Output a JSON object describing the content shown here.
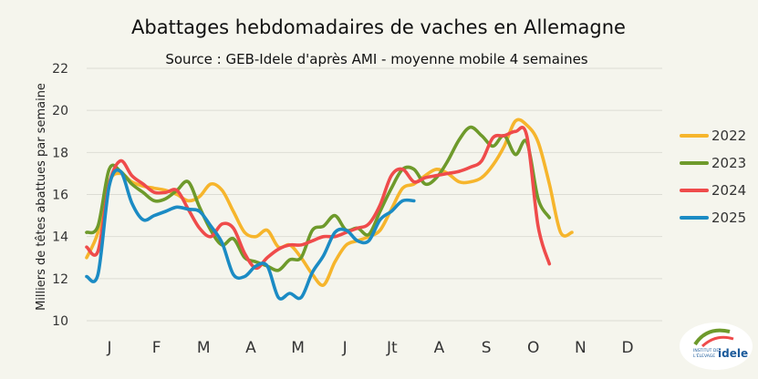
{
  "chart_data": {
    "type": "line",
    "title": "Abattages hebdomadaires de vaches en Allemagne",
    "subtitle": "Source : GEB-Idele d'après AMI - moyenne mobile 4 semaines",
    "ylabel": "Milliers de têtes abattues par semaine",
    "xlabel": "",
    "ylim": [
      10,
      22
    ],
    "yticks": [
      10,
      12,
      14,
      16,
      18,
      20,
      22
    ],
    "grid": true,
    "legend_position": "right",
    "x_tick_labels": [
      "J",
      "F",
      "M",
      "A",
      "M",
      "J",
      "Jt",
      "A",
      "S",
      "O",
      "N",
      "D"
    ],
    "x_unit": "week",
    "xlim": [
      1,
      52
    ],
    "series": [
      {
        "name": "2022",
        "color": "#f6b52c",
        "x": [
          1,
          2,
          3,
          4,
          5,
          6,
          7,
          8,
          9,
          10,
          11,
          12,
          13,
          14,
          15,
          16,
          17,
          18,
          19,
          20,
          21,
          22,
          23,
          24,
          25,
          26,
          27,
          28,
          29,
          30,
          31,
          32,
          33,
          34,
          35,
          36,
          37,
          38,
          39,
          40,
          41,
          42,
          43,
          44,
          45,
          46,
          47,
          48,
          49,
          50,
          51,
          52
        ],
        "values": [
          13.0,
          14.2,
          16.6,
          17.0,
          16.6,
          16.4,
          16.3,
          16.2,
          16.0,
          15.7,
          15.9,
          16.5,
          16.2,
          15.2,
          14.2,
          14.0,
          14.3,
          13.5,
          13.6,
          13.0,
          12.2,
          11.7,
          12.8,
          13.6,
          13.8,
          14.0,
          14.3,
          15.3,
          16.3,
          16.5,
          16.9,
          17.2,
          17.0,
          16.6,
          16.6,
          16.8,
          17.4,
          18.3,
          19.5,
          19.3,
          18.5,
          16.5,
          14.2,
          14.2,
          null,
          null,
          null,
          null,
          null,
          null,
          null,
          null
        ]
      },
      {
        "name": "2023",
        "color": "#6e9a2b",
        "x": [
          1,
          2,
          3,
          4,
          5,
          6,
          7,
          8,
          9,
          10,
          11,
          12,
          13,
          14,
          15,
          16,
          17,
          18,
          19,
          20,
          21,
          22,
          23,
          24,
          25,
          26,
          27,
          28,
          29,
          30,
          31,
          32,
          33,
          34,
          35,
          36,
          37,
          38,
          39,
          40,
          41,
          42,
          43,
          44,
          45,
          46,
          47,
          48,
          49,
          50,
          51,
          52
        ],
        "values": [
          14.2,
          14.5,
          17.2,
          17.1,
          16.5,
          16.1,
          15.7,
          15.8,
          16.2,
          16.6,
          15.4,
          14.3,
          13.6,
          13.9,
          13.0,
          12.8,
          12.6,
          12.4,
          12.9,
          13.0,
          14.3,
          14.5,
          15.0,
          14.3,
          14.4,
          14.1,
          15.2,
          16.3,
          17.2,
          17.2,
          16.5,
          16.8,
          17.6,
          18.6,
          19.2,
          18.8,
          18.3,
          18.8,
          17.9,
          18.5,
          15.8,
          14.9,
          null,
          null,
          null,
          null,
          null,
          null,
          null,
          null,
          null,
          null
        ]
      },
      {
        "name": "2024",
        "color": "#ef4b4b",
        "x": [
          1,
          2,
          3,
          4,
          5,
          6,
          7,
          8,
          9,
          10,
          11,
          12,
          13,
          14,
          15,
          16,
          17,
          18,
          19,
          20,
          21,
          22,
          23,
          24,
          25,
          26,
          27,
          28,
          29,
          30,
          31,
          32,
          33,
          34,
          35,
          36,
          37,
          38,
          39,
          40,
          41,
          42,
          43,
          44,
          45,
          46,
          47,
          48,
          49,
          50,
          51,
          52
        ],
        "values": [
          13.5,
          13.3,
          16.5,
          17.6,
          16.9,
          16.5,
          16.1,
          16.1,
          16.2,
          15.3,
          14.4,
          14.0,
          14.6,
          14.4,
          13.2,
          12.5,
          13.0,
          13.4,
          13.6,
          13.6,
          13.8,
          14.0,
          14.0,
          14.2,
          14.4,
          14.6,
          15.5,
          16.9,
          17.2,
          16.6,
          16.8,
          16.9,
          17.0,
          17.1,
          17.3,
          17.6,
          18.7,
          18.8,
          19.0,
          18.8,
          14.5,
          12.7,
          null,
          null,
          null,
          null,
          null,
          null,
          null,
          null,
          null,
          null
        ]
      },
      {
        "name": "2025",
        "color": "#1b8bc4",
        "x": [
          1,
          2,
          3,
          4,
          5,
          6,
          7,
          8,
          9,
          10,
          11,
          12,
          13,
          14,
          15,
          16,
          17,
          18,
          19,
          20,
          21,
          22,
          23,
          24,
          25,
          26,
          27,
          28,
          29,
          30,
          31,
          32,
          33,
          34,
          35,
          36,
          37,
          38,
          39,
          40,
          41,
          42,
          43,
          44,
          45,
          46,
          47,
          48,
          49,
          50,
          51,
          52
        ],
        "values": [
          12.1,
          12.2,
          16.4,
          17.1,
          15.6,
          14.8,
          15.0,
          15.2,
          15.4,
          15.3,
          15.2,
          14.5,
          13.7,
          12.2,
          12.1,
          12.6,
          12.6,
          11.1,
          11.3,
          11.1,
          12.3,
          13.1,
          14.2,
          14.3,
          13.8,
          13.8,
          14.8,
          15.2,
          15.7,
          15.7,
          null,
          null,
          null,
          null,
          null,
          null,
          null,
          null,
          null,
          null,
          null,
          null,
          null,
          null,
          null,
          null,
          null,
          null,
          null,
          null,
          null,
          null
        ]
      }
    ]
  },
  "logo": {
    "line1": "INSTITUT DE",
    "line2": "L'ÉLEVAGE",
    "brand": "idele"
  }
}
